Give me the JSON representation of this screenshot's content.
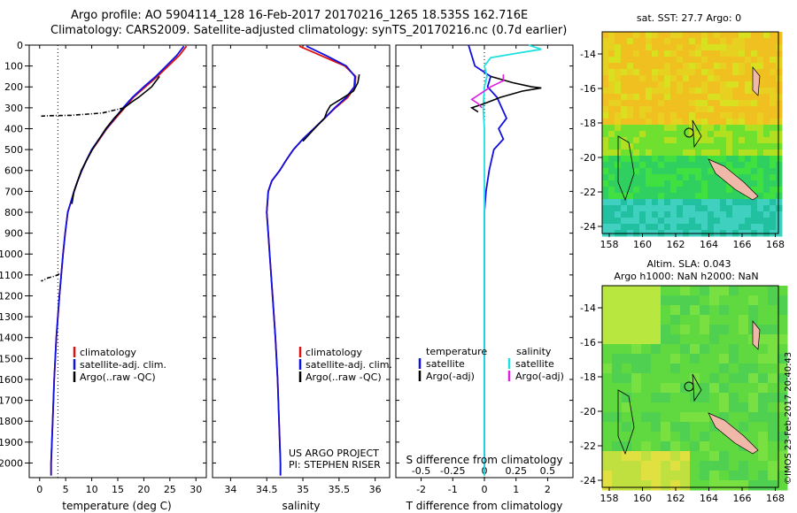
{
  "header": {
    "line1": "Argo profile: AO 5904114_128 16-Feb-2017 20170216_1265 18.535S 162.716E",
    "line2": "Climatology: CARS2009. Satellite-adjusted climatology: synTS_20170216.nc (0.7d earlier)"
  },
  "colors": {
    "climatology": "#e01010",
    "satellite": "#1010e0",
    "argo": "#000000",
    "cyan": "#20e0e0",
    "magenta": "#e020e0"
  },
  "depth_ticks": [
    0,
    100,
    200,
    300,
    400,
    500,
    600,
    700,
    800,
    900,
    1000,
    1100,
    1200,
    1300,
    1400,
    1500,
    1600,
    1700,
    1800,
    1900,
    2000
  ],
  "depth_ticks_label": [
    "0",
    "100",
    "200",
    "300",
    "400",
    "500",
    "600",
    "700",
    "800",
    "900",
    "1000",
    "1100",
    "1200",
    "1300",
    "1400",
    "1500",
    "1600",
    "1700",
    "1800",
    "1900",
    "2000"
  ],
  "chart_data": [
    {
      "type": "line",
      "id": "temperature",
      "xlabel": "temperature (deg C)",
      "xlim": [
        -2,
        32
      ],
      "ylim": [
        2070,
        0
      ],
      "xticks": [
        0,
        5,
        10,
        15,
        20,
        25,
        30
      ],
      "xticks_label": [
        "0",
        "5",
        "10",
        "15",
        "20",
        "25",
        "30"
      ],
      "reference_line_x": 3.5,
      "legend": [
        "climatology",
        "satellite-adj. clim.",
        "Argo(..raw -QC)"
      ],
      "series": [
        {
          "name": "climatology",
          "depth": [
            5,
            50,
            100,
            150,
            200,
            250,
            300,
            350,
            400,
            450,
            500,
            550,
            600,
            650,
            700,
            750,
            800,
            900,
            1000,
            1200,
            1400,
            1600,
            1800,
            2000,
            2060
          ],
          "values": [
            28.2,
            26.8,
            24.7,
            22.6,
            20.3,
            18.0,
            16.3,
            14.6,
            12.9,
            11.5,
            10.1,
            9.0,
            8.1,
            7.3,
            6.6,
            6.0,
            5.4,
            4.9,
            4.5,
            3.8,
            3.2,
            2.8,
            2.5,
            2.2,
            2.2
          ]
        },
        {
          "name": "satellite-adj. clim.",
          "depth": [
            5,
            50,
            100,
            150,
            200,
            250,
            300,
            350,
            400,
            450,
            500,
            550,
            600,
            650,
            700,
            750,
            800,
            900,
            1000,
            1200,
            1400,
            1600,
            1800,
            2000,
            2060
          ],
          "values": [
            27.7,
            26.3,
            24.3,
            22.3,
            20.0,
            17.8,
            16.0,
            14.4,
            12.8,
            11.4,
            10.0,
            9.0,
            8.1,
            7.3,
            6.6,
            6.0,
            5.4,
            4.9,
            4.5,
            3.8,
            3.2,
            2.8,
            2.5,
            2.2,
            2.2
          ]
        },
        {
          "name": "Argo(..raw -QC)",
          "depth": [
            150,
            200,
            250,
            270,
            300,
            350,
            400,
            500,
            600,
            700,
            760
          ],
          "values": [
            23.0,
            21.5,
            19.0,
            17.8,
            16.2,
            14.3,
            12.7,
            10.1,
            8.0,
            6.6,
            6.2
          ]
        },
        {
          "name": "Argo flagged",
          "depth": [
            300,
            325,
            336,
            338,
            340
          ],
          "values": [
            16.2,
            12.0,
            6.0,
            2.0,
            0.3
          ]
        },
        {
          "name": "Argo flagged deep",
          "depth": [
            1095,
            1105,
            1115,
            1130
          ],
          "values": [
            3.8,
            3.0,
            1.5,
            0.3
          ]
        }
      ]
    },
    {
      "type": "line",
      "id": "salinity",
      "xlabel": "salinity",
      "xlim": [
        33.75,
        36.2
      ],
      "ylim": [
        2070,
        0
      ],
      "xticks": [
        34,
        34.5,
        35,
        35.5,
        36
      ],
      "xticks_label": [
        "34",
        "34.5",
        "35",
        "35.5",
        "36"
      ],
      "legend": [
        "climatology",
        "satellite-adj. clim.",
        "Argo(..raw -QC)"
      ],
      "series": [
        {
          "name": "climatology",
          "depth": [
            5,
            50,
            100,
            150,
            200,
            250,
            300,
            350,
            400,
            450,
            500,
            550,
            600,
            650,
            700,
            800,
            900,
            1000,
            1200,
            1400,
            1600,
            1800,
            2000,
            2060
          ],
          "values": [
            34.95,
            35.25,
            35.58,
            35.73,
            35.72,
            35.62,
            35.45,
            35.3,
            35.15,
            35.0,
            34.87,
            34.77,
            34.68,
            34.57,
            34.52,
            34.5,
            34.52,
            34.54,
            34.58,
            34.62,
            34.65,
            34.67,
            34.69,
            34.69
          ]
        },
        {
          "name": "satellite-adj. clim.",
          "depth": [
            5,
            50,
            100,
            150,
            200,
            250,
            300,
            350,
            400,
            450,
            500,
            550,
            600,
            650,
            700,
            800,
            900,
            1000,
            1200,
            1400,
            1600,
            1800,
            2000,
            2060
          ],
          "values": [
            35.05,
            35.32,
            35.6,
            35.72,
            35.71,
            35.6,
            35.44,
            35.3,
            35.15,
            35.0,
            34.87,
            34.77,
            34.68,
            34.57,
            34.52,
            34.5,
            34.52,
            34.54,
            34.58,
            34.62,
            34.65,
            34.67,
            34.69,
            34.69
          ]
        },
        {
          "name": "Argo(..raw -QC)",
          "depth": [
            140,
            180,
            220,
            260,
            290,
            320,
            350,
            400,
            460
          ],
          "values": [
            35.78,
            35.76,
            35.7,
            35.52,
            35.38,
            35.33,
            35.3,
            35.16,
            35.0
          ]
        }
      ],
      "annotation_line1": "US ARGO PROJECT",
      "annotation_line2": "PI: STEPHEN RISER"
    },
    {
      "type": "line",
      "id": "difference",
      "xlabel": "T difference from climatology",
      "xlabel_top": "S difference from climatology",
      "xlim": [
        -2.8,
        2.8
      ],
      "ylim": [
        2070,
        0
      ],
      "xticks": [
        -2,
        -1,
        0,
        1,
        2
      ],
      "xticks_label": [
        "-2",
        "-1",
        "0",
        "1",
        "2"
      ],
      "s_ticks": [
        -0.5,
        -0.25,
        0,
        0.25,
        0.5
      ],
      "s_ticks_label": [
        "-0.5",
        "-0.25",
        "0",
        "0.25",
        "0.5"
      ],
      "legend_col1_title": "temperature",
      "legend_col2_title": "salinity",
      "legend_col1": [
        "satellite",
        "Argo(-adj)"
      ],
      "legend_col2": [
        "satellite",
        "Argo(-adj)"
      ],
      "series": [
        {
          "name": "T satellite",
          "depth": [
            0,
            50,
            100,
            150,
            200,
            250,
            300,
            350,
            400,
            450,
            500,
            600,
            700,
            800,
            1000,
            1500,
            2000,
            2060
          ],
          "values": [
            -0.5,
            -0.4,
            -0.3,
            0.2,
            0.1,
            0.4,
            0.55,
            0.7,
            0.45,
            0.6,
            0.3,
            0.15,
            0.05,
            0.0,
            0.0,
            0.0,
            0.0,
            0.0
          ]
        },
        {
          "name": "S satellite",
          "depth": [
            0,
            20,
            40,
            60,
            100,
            150,
            200,
            300,
            400,
            600,
            800,
            1000,
            1500,
            2060
          ],
          "values": [
            0.35,
            0.45,
            0.25,
            0.05,
            0.0,
            0.02,
            0.0,
            -0.01,
            0.0,
            0.0,
            0.0,
            0.0,
            0.0,
            0.0
          ]
        },
        {
          "name": "T Argo(-adj)",
          "depth": [
            150,
            180,
            200,
            205,
            220,
            250,
            280,
            300,
            320
          ],
          "values": [
            0.2,
            0.9,
            1.5,
            1.8,
            1.2,
            0.5,
            0.0,
            -0.4,
            -0.2
          ]
        },
        {
          "name": "S Argo(-adj)",
          "depth": [
            140,
            170,
            200,
            240,
            260,
            280,
            300
          ],
          "values": [
            0.15,
            0.15,
            0.05,
            -0.05,
            -0.1,
            -0.05,
            -0.02
          ]
        }
      ]
    }
  ],
  "maps": {
    "top": {
      "title": "sat. SST: 27.7 Argo: 0",
      "yticks": [
        "-14",
        "-16",
        "-18",
        "-20",
        "-22",
        "-24"
      ],
      "xticks": [
        "158",
        "160",
        "162",
        "164",
        "166",
        "168"
      ]
    },
    "bottom": {
      "title1": "Altim. SLA: 0.043",
      "title2": "Argo h1000: NaN h2000: NaN",
      "yticks": [
        "-14",
        "-16",
        "-18",
        "-20",
        "-22",
        "-24"
      ],
      "xticks": [
        "158",
        "160",
        "162",
        "164",
        "166",
        "168"
      ]
    },
    "watermark": "©IMOS 23-Feb-2017 20:40:43"
  }
}
